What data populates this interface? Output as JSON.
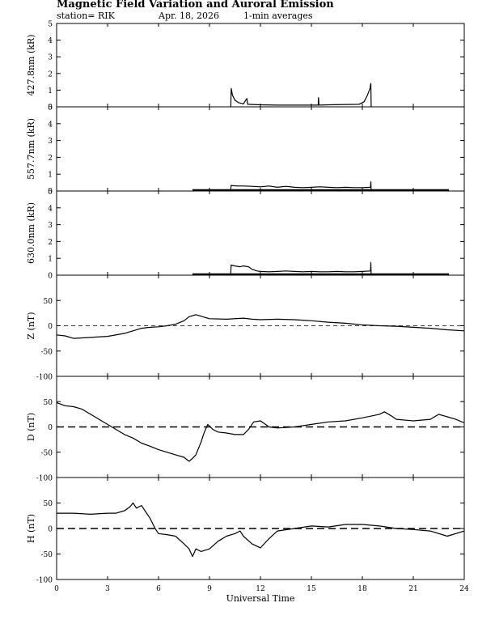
{
  "header": {
    "title": "Magnetic Field Variation and Auroral Emission",
    "station": "station= RIK",
    "date": "Apr. 18, 2026",
    "averaging": "1-min averages"
  },
  "chart_data": [
    {
      "type": "line",
      "panel": "427.8nm",
      "ylabel": "427.8nm (kR)",
      "ylim": [
        0,
        5
      ],
      "yticks": [
        0,
        1,
        2,
        3,
        4,
        5
      ],
      "zero_line": "none",
      "xlim": [
        0,
        24
      ],
      "points": [
        [
          10.25,
          0.02
        ],
        [
          10.28,
          1.1
        ],
        [
          10.35,
          0.7
        ],
        [
          10.5,
          0.4
        ],
        [
          10.7,
          0.25
        ],
        [
          11,
          0.18
        ],
        [
          11.2,
          0.5
        ],
        [
          11.25,
          0.15
        ],
        [
          12,
          0.12
        ],
        [
          13,
          0.1
        ],
        [
          14,
          0.1
        ],
        [
          15,
          0.1
        ],
        [
          15.4,
          0.1
        ],
        [
          15.42,
          0.55
        ],
        [
          15.45,
          0.1
        ],
        [
          16,
          0.12
        ],
        [
          17,
          0.14
        ],
        [
          17.8,
          0.15
        ],
        [
          18.1,
          0.3
        ],
        [
          18.3,
          0.7
        ],
        [
          18.45,
          1.1
        ],
        [
          18.5,
          1.4
        ],
        [
          18.52,
          0.02
        ]
      ]
    },
    {
      "type": "line",
      "panel": "557.7nm",
      "ylabel": "557.7nm (kR)",
      "ylim": [
        0,
        5
      ],
      "yticks": [
        0,
        1,
        2,
        3,
        4,
        5
      ],
      "zero_line": "none",
      "xlim": [
        0,
        24
      ],
      "baseline": {
        "x_start": 8,
        "x_end": 23.1,
        "value": 0.05
      },
      "points": [
        [
          10.25,
          0.05
        ],
        [
          10.27,
          0.33
        ],
        [
          10.6,
          0.3
        ],
        [
          11,
          0.3
        ],
        [
          11.5,
          0.28
        ],
        [
          12,
          0.25
        ],
        [
          12.5,
          0.3
        ],
        [
          13,
          0.22
        ],
        [
          13.5,
          0.28
        ],
        [
          14,
          0.22
        ],
        [
          14.5,
          0.2
        ],
        [
          15,
          0.22
        ],
        [
          15.5,
          0.25
        ],
        [
          16,
          0.22
        ],
        [
          16.5,
          0.2
        ],
        [
          17,
          0.22
        ],
        [
          17.5,
          0.2
        ],
        [
          18,
          0.2
        ],
        [
          18.48,
          0.22
        ],
        [
          18.5,
          0.55
        ],
        [
          18.52,
          0.05
        ]
      ]
    },
    {
      "type": "line",
      "panel": "630.0nm",
      "ylabel": "630.0nm (kR)",
      "ylim": [
        0,
        5
      ],
      "yticks": [
        0,
        1,
        2,
        3,
        4,
        5
      ],
      "zero_line": "none",
      "xlim": [
        0,
        24
      ],
      "baseline": {
        "x_start": 8,
        "x_end": 23.1,
        "value": 0.05
      },
      "points": [
        [
          10.25,
          0.05
        ],
        [
          10.27,
          0.6
        ],
        [
          10.5,
          0.55
        ],
        [
          10.8,
          0.5
        ],
        [
          11,
          0.55
        ],
        [
          11.3,
          0.5
        ],
        [
          11.5,
          0.35
        ],
        [
          11.8,
          0.25
        ],
        [
          12,
          0.22
        ],
        [
          12.5,
          0.2
        ],
        [
          13,
          0.22
        ],
        [
          13.5,
          0.25
        ],
        [
          14,
          0.22
        ],
        [
          14.5,
          0.2
        ],
        [
          15,
          0.22
        ],
        [
          15.5,
          0.2
        ],
        [
          16,
          0.2
        ],
        [
          16.5,
          0.22
        ],
        [
          17,
          0.2
        ],
        [
          17.5,
          0.2
        ],
        [
          18,
          0.22
        ],
        [
          18.48,
          0.25
        ],
        [
          18.5,
          0.75
        ],
        [
          18.52,
          0.05
        ]
      ]
    },
    {
      "type": "line",
      "panel": "Z",
      "ylabel": "Z (nT)",
      "ylim": [
        -100,
        100
      ],
      "yticks": [
        -100,
        -50,
        0,
        50
      ],
      "zero_line": "thin-dashed",
      "xlim": [
        0,
        24
      ],
      "points": [
        [
          0,
          -18
        ],
        [
          0.5,
          -20
        ],
        [
          1,
          -25
        ],
        [
          1.5,
          -24
        ],
        [
          2,
          -23
        ],
        [
          3,
          -21
        ],
        [
          4,
          -15
        ],
        [
          5,
          -5
        ],
        [
          5.5,
          -3
        ],
        [
          6,
          -2
        ],
        [
          6.5,
          0
        ],
        [
          7,
          3
        ],
        [
          7.5,
          10
        ],
        [
          7.8,
          18
        ],
        [
          8.2,
          22
        ],
        [
          8.6,
          18
        ],
        [
          9,
          14
        ],
        [
          10,
          13
        ],
        [
          11,
          15
        ],
        [
          11.5,
          13
        ],
        [
          12,
          12
        ],
        [
          13,
          13
        ],
        [
          14,
          12
        ],
        [
          15,
          10
        ],
        [
          16,
          7
        ],
        [
          17,
          5
        ],
        [
          18,
          2
        ],
        [
          19,
          0
        ],
        [
          20,
          -1
        ],
        [
          21,
          -3
        ],
        [
          22,
          -5
        ],
        [
          23,
          -8
        ],
        [
          24,
          -10
        ]
      ]
    },
    {
      "type": "line",
      "panel": "D",
      "ylabel": "D (nT)",
      "ylim": [
        -100,
        100
      ],
      "yticks": [
        -100,
        -50,
        0,
        50
      ],
      "zero_line": "thick-dashed",
      "xlim": [
        0,
        24
      ],
      "points": [
        [
          0,
          48
        ],
        [
          0.5,
          42
        ],
        [
          1,
          40
        ],
        [
          1.5,
          35
        ],
        [
          2,
          25
        ],
        [
          2.5,
          15
        ],
        [
          3,
          5
        ],
        [
          3.5,
          -5
        ],
        [
          4,
          -15
        ],
        [
          4.5,
          -22
        ],
        [
          5,
          -32
        ],
        [
          5.5,
          -38
        ],
        [
          6,
          -45
        ],
        [
          6.5,
          -50
        ],
        [
          7,
          -55
        ],
        [
          7.5,
          -60
        ],
        [
          7.8,
          -68
        ],
        [
          8,
          -62
        ],
        [
          8.2,
          -55
        ],
        [
          8.5,
          -30
        ],
        [
          8.7,
          -10
        ],
        [
          8.9,
          5
        ],
        [
          9.2,
          -5
        ],
        [
          9.5,
          -10
        ],
        [
          10,
          -12
        ],
        [
          10.5,
          -15
        ],
        [
          11,
          -15
        ],
        [
          11.3,
          -5
        ],
        [
          11.6,
          10
        ],
        [
          12,
          12
        ],
        [
          12.3,
          5
        ],
        [
          12.5,
          0
        ],
        [
          13,
          -2
        ],
        [
          14,
          0
        ],
        [
          15,
          5
        ],
        [
          16,
          10
        ],
        [
          17,
          12
        ],
        [
          18,
          18
        ],
        [
          19,
          25
        ],
        [
          19.3,
          30
        ],
        [
          19.7,
          22
        ],
        [
          20,
          15
        ],
        [
          21,
          12
        ],
        [
          22,
          15
        ],
        [
          22.5,
          25
        ],
        [
          23,
          20
        ],
        [
          23.5,
          15
        ],
        [
          24,
          8
        ]
      ]
    },
    {
      "type": "line",
      "panel": "H",
      "ylabel": "H (nT)",
      "ylim": [
        -100,
        100
      ],
      "yticks": [
        -100,
        -50,
        0,
        50
      ],
      "zero_line": "thick-dashed",
      "xlim": [
        0,
        24
      ],
      "points": [
        [
          0,
          30
        ],
        [
          1,
          30
        ],
        [
          2,
          28
        ],
        [
          3,
          30
        ],
        [
          3.5,
          30
        ],
        [
          4,
          35
        ],
        [
          4.3,
          42
        ],
        [
          4.5,
          50
        ],
        [
          4.7,
          40
        ],
        [
          5,
          45
        ],
        [
          5.2,
          35
        ],
        [
          5.5,
          20
        ],
        [
          5.8,
          0
        ],
        [
          6,
          -10
        ],
        [
          6.5,
          -12
        ],
        [
          7,
          -15
        ],
        [
          7.5,
          -30
        ],
        [
          7.8,
          -40
        ],
        [
          8,
          -55
        ],
        [
          8.2,
          -40
        ],
        [
          8.5,
          -45
        ],
        [
          9,
          -40
        ],
        [
          9.5,
          -25
        ],
        [
          10,
          -15
        ],
        [
          10.5,
          -10
        ],
        [
          10.8,
          -5
        ],
        [
          11,
          -15
        ],
        [
          11.5,
          -30
        ],
        [
          12,
          -38
        ],
        [
          12.5,
          -20
        ],
        [
          13,
          -5
        ],
        [
          14,
          0
        ],
        [
          15,
          5
        ],
        [
          16,
          3
        ],
        [
          17,
          8
        ],
        [
          18,
          8
        ],
        [
          19,
          5
        ],
        [
          20,
          0
        ],
        [
          21,
          -2
        ],
        [
          22,
          -5
        ],
        [
          23,
          -15
        ],
        [
          24,
          -5
        ]
      ]
    },
    {
      "type": "axis",
      "xlabel": "Universal Time",
      "xticks": [
        0,
        3,
        6,
        9,
        12,
        15,
        18,
        21,
        24
      ],
      "xlim": [
        0,
        24
      ]
    }
  ]
}
